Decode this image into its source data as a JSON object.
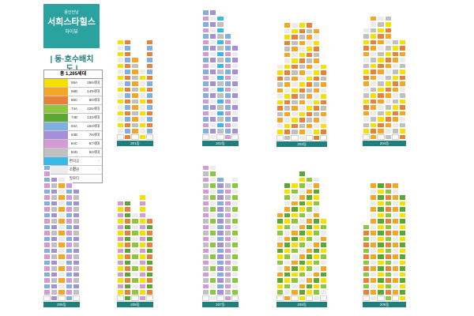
{
  "header": {
    "brand_small": "용인언남",
    "brand_main": "서희스타힐스",
    "brand_tail": "하이뷰",
    "map_title": "| 동·호수배치도 |"
  },
  "legend": {
    "title": "총 1,265세대",
    "rows": [
      {
        "type": "59A",
        "count": "286세대",
        "color": "#f5e000"
      },
      {
        "type": "59B",
        "count": "149세대",
        "color": "#f5a623"
      },
      {
        "type": "59C",
        "count": "80세대",
        "color": "#e8823a"
      },
      {
        "type": "74A",
        "count": "225세대",
        "color": "#8dc63f"
      },
      {
        "type": "74B",
        "count": "133세대",
        "color": "#5aa832"
      },
      {
        "type": "84A",
        "count": "164세대",
        "color": "#7fb0e0"
      },
      {
        "type": "84B",
        "count": "79세대",
        "color": "#a58fd6"
      },
      {
        "type": "84C",
        "count": "87세대",
        "color": "#d59ad6"
      },
      {
        "type": "84D",
        "count": "62세대",
        "color": "#c0c0c0"
      },
      {
        "type": "편의공간",
        "count": "-",
        "color": "#3bb7e8"
      },
      {
        "type": "조합원",
        "count": "-",
        "color": "#ececec"
      },
      {
        "type": "필로티",
        "count": "",
        "color": "#ffffff"
      }
    ]
  },
  "buildings": [
    {
      "name": "201동"
    },
    {
      "name": "202동"
    },
    {
      "name": "203동"
    },
    {
      "name": "204동"
    },
    {
      "name": "205동"
    },
    {
      "name": "206동"
    },
    {
      "name": "207동"
    },
    {
      "name": "208동"
    },
    {
      "name": "209동"
    }
  ]
}
